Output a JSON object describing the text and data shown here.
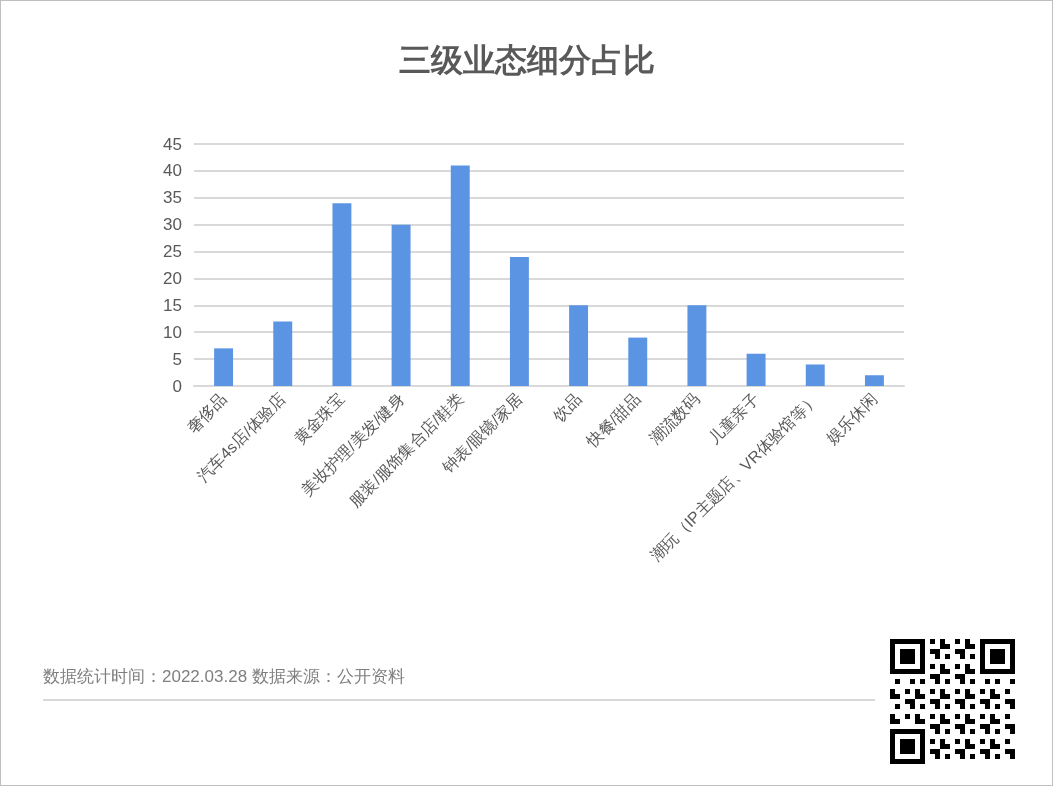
{
  "chart_data": {
    "type": "bar",
    "title": "三级业态细分占比",
    "categories": [
      "奢侈品",
      "汽车4s店/体验店",
      "黄金珠宝",
      "美妆护理/美发/健身",
      "服装/服饰集合店/鞋类",
      "钟表/眼镜/家居",
      "饮品",
      "快餐/甜品",
      "潮流数码",
      "儿童亲子",
      "潮玩（IP主题店、VR体验馆等）",
      "娱乐休闲"
    ],
    "values": [
      7,
      12,
      34,
      30,
      41,
      24,
      15,
      9,
      15,
      6,
      4,
      2
    ],
    "color": "#5b94e3",
    "ylim": [
      0,
      45
    ],
    "yticks": [
      0,
      5,
      10,
      15,
      20,
      25,
      30,
      35,
      40,
      45
    ],
    "grid": "y",
    "annotations": [
      "数据统计时间：2022.03.28 数据来源：公开资料"
    ]
  }
}
